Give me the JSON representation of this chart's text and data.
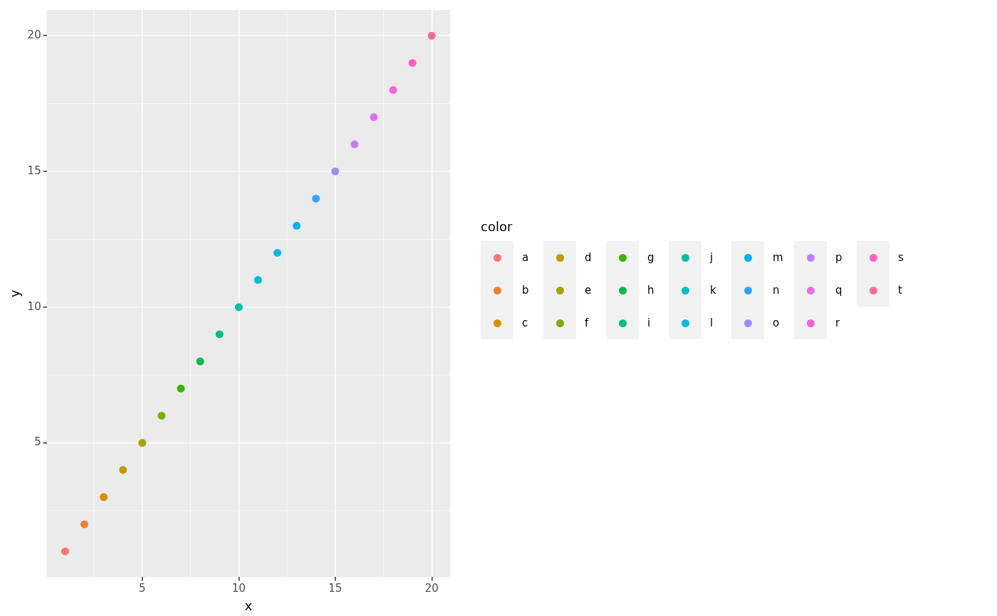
{
  "chart_data": {
    "type": "scatter",
    "xlabel": "x",
    "ylabel": "y",
    "legend_title": "color",
    "legend": "right",
    "grid": true,
    "marker": "circle",
    "xlim": [
      0.05,
      20.95
    ],
    "ylim": [
      0.05,
      20.95
    ],
    "xticks": [
      5,
      10,
      15,
      20
    ],
    "yticks": [
      5,
      10,
      15,
      20
    ],
    "series": [
      {
        "name": "a",
        "color": "#f8766d",
        "x": [
          1
        ],
        "values": [
          1
        ]
      },
      {
        "name": "b",
        "color": "#ea8331",
        "x": [
          2
        ],
        "values": [
          2
        ]
      },
      {
        "name": "c",
        "color": "#d89000",
        "x": [
          3
        ],
        "values": [
          3
        ]
      },
      {
        "name": "d",
        "color": "#c09b00",
        "x": [
          4
        ],
        "values": [
          4
        ]
      },
      {
        "name": "e",
        "color": "#a3a500",
        "x": [
          5
        ],
        "values": [
          5
        ]
      },
      {
        "name": "f",
        "color": "#7cae00",
        "x": [
          6
        ],
        "values": [
          6
        ]
      },
      {
        "name": "g",
        "color": "#39b600",
        "x": [
          7
        ],
        "values": [
          7
        ]
      },
      {
        "name": "h",
        "color": "#00bb4e",
        "x": [
          8
        ],
        "values": [
          8
        ]
      },
      {
        "name": "i",
        "color": "#00bf7d",
        "x": [
          9
        ],
        "values": [
          9
        ]
      },
      {
        "name": "j",
        "color": "#00c1a3",
        "x": [
          10
        ],
        "values": [
          10
        ]
      },
      {
        "name": "k",
        "color": "#00bfc4",
        "x": [
          11
        ],
        "values": [
          11
        ]
      },
      {
        "name": "l",
        "color": "#00bae0",
        "x": [
          12
        ],
        "values": [
          12
        ]
      },
      {
        "name": "m",
        "color": "#00b0f6",
        "x": [
          13
        ],
        "values": [
          13
        ]
      },
      {
        "name": "n",
        "color": "#35a2ff",
        "x": [
          14
        ],
        "values": [
          14
        ]
      },
      {
        "name": "o",
        "color": "#9590ff",
        "x": [
          15
        ],
        "values": [
          15
        ]
      },
      {
        "name": "p",
        "color": "#c77cff",
        "x": [
          16
        ],
        "values": [
          16
        ]
      },
      {
        "name": "q",
        "color": "#e76bf3",
        "x": [
          17
        ],
        "values": [
          17
        ]
      },
      {
        "name": "r",
        "color": "#fa62db",
        "x": [
          18
        ],
        "values": [
          18
        ]
      },
      {
        "name": "s",
        "color": "#ff62bc",
        "x": [
          19
        ],
        "values": [
          19
        ]
      },
      {
        "name": "t",
        "color": "#ff6c91",
        "x": [
          20
        ],
        "values": [
          20
        ]
      }
    ]
  }
}
